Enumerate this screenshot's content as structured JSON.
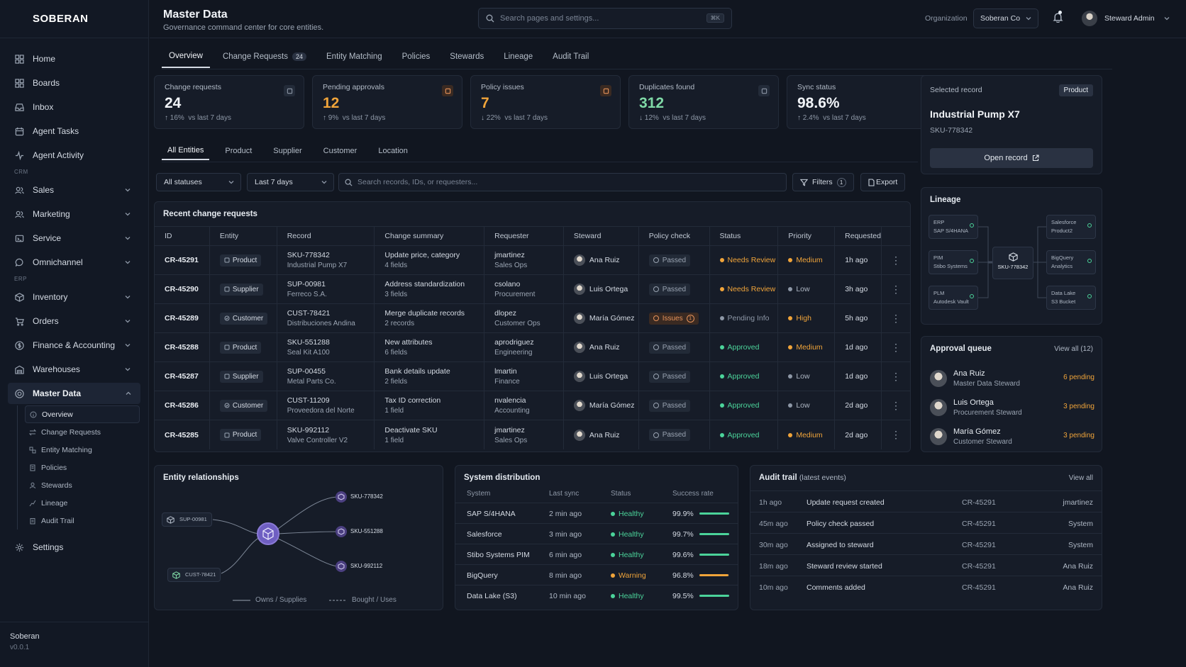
{
  "brand": "SOBERAN",
  "sidebar": {
    "items": [
      {
        "label": "Home",
        "icon": "home-icon"
      },
      {
        "label": "Boards",
        "icon": "boards-icon"
      },
      {
        "label": "Inbox",
        "icon": "inbox-icon"
      },
      {
        "label": "Agent Tasks",
        "icon": "tasks-icon"
      },
      {
        "label": "Agent Activity",
        "icon": "activity-icon"
      }
    ],
    "crm_section": "CRM",
    "crm_items": [
      {
        "label": "Sales"
      },
      {
        "label": "Marketing"
      },
      {
        "label": "Service"
      },
      {
        "label": "Omnichannel"
      }
    ],
    "erp_section": "ERP",
    "erp_items": [
      {
        "label": "Inventory"
      },
      {
        "label": "Orders"
      },
      {
        "label": "Finance & Accounting"
      },
      {
        "label": "Warehouses"
      }
    ],
    "master_data": "Master Data",
    "sub_items": [
      "Overview",
      "Change Requests",
      "Entity Matching",
      "Policies",
      "Stewards",
      "Lineage",
      "Audit Trail"
    ],
    "settings": "Settings",
    "footer_name": "Soberan",
    "footer_version": "v0.0.1"
  },
  "header": {
    "title": "Master Data",
    "subtitle": "Governance command center for core entities.",
    "search_placeholder": "Search pages and settings...",
    "search_kbd": "⌘K",
    "org_label": "Organization",
    "org_value": "Soberan Co",
    "user_name": "Steward Admin"
  },
  "tabs": [
    {
      "label": "Overview",
      "count": ""
    },
    {
      "label": "Change Requests",
      "count": "24"
    },
    {
      "label": "Entity Matching",
      "count": ""
    },
    {
      "label": "Policies",
      "count": ""
    },
    {
      "label": "Stewards",
      "count": ""
    },
    {
      "label": "Lineage",
      "count": ""
    },
    {
      "label": "Audit Trail",
      "count": ""
    }
  ],
  "kpis": [
    {
      "label": "Change requests",
      "value": "24",
      "delta": "16%",
      "delta_text": "vs last 7 days",
      "dir": "↑",
      "color": "#f1f4f8"
    },
    {
      "label": "Pending approvals",
      "value": "12",
      "delta": "9%",
      "delta_text": "vs last 7 days",
      "dir": "↑",
      "color": "#f0a43a"
    },
    {
      "label": "Policy issues",
      "value": "7",
      "delta": "22%",
      "delta_text": "vs last 7 days",
      "dir": "↓",
      "color": "#f0a43a"
    },
    {
      "label": "Duplicates found",
      "value": "312",
      "delta": "12%",
      "delta_text": "vs last 7 days",
      "dir": "↓",
      "color": "#7fd9a6"
    },
    {
      "label": "Sync status",
      "value": "98.6%",
      "delta": "2.4%",
      "delta_text": "vs last 7 days",
      "dir": "↑",
      "color": "#f1f4f8"
    }
  ],
  "entity_tabs": [
    "All Entities",
    "Product",
    "Supplier",
    "Customer",
    "Location"
  ],
  "filters": {
    "status": "All statuses",
    "period": "Last 7 days",
    "search_placeholder": "Search records, IDs, or requesters...",
    "filters_label": "Filters",
    "filters_count": "1",
    "export_label": "Export"
  },
  "table": {
    "title": "Recent change requests",
    "columns": [
      "ID",
      "Entity",
      "Record",
      "Change summary",
      "Requester",
      "Steward",
      "Policy check",
      "Status",
      "Priority",
      "Requested"
    ],
    "rows": [
      {
        "id": "CR-45291",
        "entity": "Product",
        "record": "SKU-778342",
        "record_sub": "Industrial Pump X7",
        "summary": "Update price, category",
        "summary_sub": "4 fields",
        "requester": "jmartinez",
        "requester_sub": "Sales Ops",
        "steward": "Ana Ruiz",
        "policy": "Passed",
        "policy_count": "",
        "status": "Needs Review",
        "status_color": "#f0a43a",
        "priority": "Medium",
        "priority_color": "#f0a43a",
        "requested": "1h ago"
      },
      {
        "id": "CR-45290",
        "entity": "Supplier",
        "record": "SUP-00981",
        "record_sub": "Ferreco S.A.",
        "summary": "Address standardization",
        "summary_sub": "3 fields",
        "requester": "csolano",
        "requester_sub": "Procurement",
        "steward": "Luis Ortega",
        "policy": "Passed",
        "policy_count": "",
        "status": "Needs Review",
        "status_color": "#f0a43a",
        "priority": "Low",
        "priority_color": "#8d97a6",
        "requested": "3h ago"
      },
      {
        "id": "CR-45289",
        "entity": "Customer",
        "record": "CUST-78421",
        "record_sub": "Distribuciones Andina",
        "summary": "Merge duplicate records",
        "summary_sub": "2 records",
        "requester": "dlopez",
        "requester_sub": "Customer Ops",
        "steward": "María Gómez",
        "policy": "Issues",
        "policy_count": "1",
        "status": "Pending Info",
        "status_color": "#8d97a6",
        "priority": "High",
        "priority_color": "#f0a43a",
        "requested": "5h ago"
      },
      {
        "id": "CR-45288",
        "entity": "Product",
        "record": "SKU-551288",
        "record_sub": "Seal Kit A100",
        "summary": "New attributes",
        "summary_sub": "6 fields",
        "requester": "aprodriguez",
        "requester_sub": "Engineering",
        "steward": "Ana Ruiz",
        "policy": "Passed",
        "policy_count": "",
        "status": "Approved",
        "status_color": "#4bd39a",
        "priority": "Medium",
        "priority_color": "#f0a43a",
        "requested": "1d ago"
      },
      {
        "id": "CR-45287",
        "entity": "Supplier",
        "record": "SUP-00455",
        "record_sub": "Metal Parts Co.",
        "summary": "Bank details update",
        "summary_sub": "2 fields",
        "requester": "lmartin",
        "requester_sub": "Finance",
        "steward": "Luis Ortega",
        "policy": "Passed",
        "policy_count": "",
        "status": "Approved",
        "status_color": "#4bd39a",
        "priority": "Low",
        "priority_color": "#8d97a6",
        "requested": "1d ago"
      },
      {
        "id": "CR-45286",
        "entity": "Customer",
        "record": "CUST-11209",
        "record_sub": "Proveedora del Norte",
        "summary": "Tax ID correction",
        "summary_sub": "1 field",
        "requester": "nvalencia",
        "requester_sub": "Accounting",
        "steward": "María Gómez",
        "policy": "Passed",
        "policy_count": "",
        "status": "Approved",
        "status_color": "#4bd39a",
        "priority": "Low",
        "priority_color": "#8d97a6",
        "requested": "2d ago"
      },
      {
        "id": "CR-45285",
        "entity": "Product",
        "record": "SKU-992112",
        "record_sub": "Valve Controller V2",
        "summary": "Deactivate SKU",
        "summary_sub": "1 field",
        "requester": "jmartinez",
        "requester_sub": "Sales Ops",
        "steward": "Ana Ruiz",
        "policy": "Passed",
        "policy_count": "",
        "status": "Approved",
        "status_color": "#4bd39a",
        "priority": "Medium",
        "priority_color": "#f0a43a",
        "requested": "2d ago"
      }
    ]
  },
  "selected": {
    "label": "Selected record",
    "tag": "Product",
    "name": "Industrial Pump X7",
    "sku": "SKU-778342",
    "open": "Open record"
  },
  "lineage": {
    "title": "Lineage",
    "left": [
      [
        "ERP",
        "SAP S/4HANA"
      ],
      [
        "PIM",
        "Stibo Systems"
      ],
      [
        "PLM",
        "Autodesk Vault"
      ]
    ],
    "center": "SKU-778342",
    "right": [
      [
        "Salesforce",
        "Product2"
      ],
      [
        "BigQuery",
        "Analytics"
      ],
      [
        "Data Lake",
        "S3 Bucket"
      ]
    ]
  },
  "approval": {
    "title": "Approval queue",
    "view_all": "View all (12)",
    "rows": [
      {
        "name": "Ana Ruiz",
        "role": "Master Data Steward",
        "pending": "6 pending"
      },
      {
        "name": "Luis Ortega",
        "role": "Procurement Steward",
        "pending": "3 pending"
      },
      {
        "name": "María Gómez",
        "role": "Customer Steward",
        "pending": "3 pending"
      }
    ]
  },
  "relationships": {
    "title": "Entity relationships",
    "nodes_left": [
      "SUP-00981",
      "CUST-78421"
    ],
    "nodes_right": [
      "SKU-778342",
      "SKU-551288",
      "SKU-992112"
    ],
    "legend_solid": "Owns / Supplies",
    "legend_dashed": "Bought / Uses"
  },
  "distribution": {
    "title": "System distribution",
    "columns": [
      "System",
      "Last sync",
      "Status",
      "Success rate"
    ],
    "rows": [
      {
        "system": "SAP S/4HANA",
        "sync": "2 min ago",
        "status": "Healthy",
        "status_color": "#4bd39a",
        "rate": "99.9%",
        "fill": 0.999,
        "bar": "#4bd39a"
      },
      {
        "system": "Salesforce",
        "sync": "3 min ago",
        "status": "Healthy",
        "status_color": "#4bd39a",
        "rate": "99.7%",
        "fill": 0.997,
        "bar": "#4bd39a"
      },
      {
        "system": "Stibo Systems PIM",
        "sync": "6 min ago",
        "status": "Healthy",
        "status_color": "#4bd39a",
        "rate": "99.6%",
        "fill": 0.996,
        "bar": "#4bd39a"
      },
      {
        "system": "BigQuery",
        "sync": "8 min ago",
        "status": "Warning",
        "status_color": "#f0a43a",
        "rate": "96.8%",
        "fill": 0.968,
        "bar": "#f0a43a"
      },
      {
        "system": "Data Lake (S3)",
        "sync": "10 min ago",
        "status": "Healthy",
        "status_color": "#4bd39a",
        "rate": "99.5%",
        "fill": 0.995,
        "bar": "#4bd39a"
      }
    ]
  },
  "audit": {
    "title": "Audit trail",
    "title_sub": "(latest events)",
    "view_all": "View all",
    "rows": [
      {
        "time": "1h ago",
        "event": "Update request created",
        "ref": "CR-45291",
        "actor": "jmartinez"
      },
      {
        "time": "45m ago",
        "event": "Policy check passed",
        "ref": "CR-45291",
        "actor": "System"
      },
      {
        "time": "30m ago",
        "event": "Assigned to steward",
        "ref": "CR-45291",
        "actor": "System"
      },
      {
        "time": "18m ago",
        "event": "Steward review started",
        "ref": "CR-45291",
        "actor": "Ana Ruiz"
      },
      {
        "time": "10m ago",
        "event": "Comments added",
        "ref": "CR-45291",
        "actor": "Ana Ruiz"
      }
    ]
  }
}
